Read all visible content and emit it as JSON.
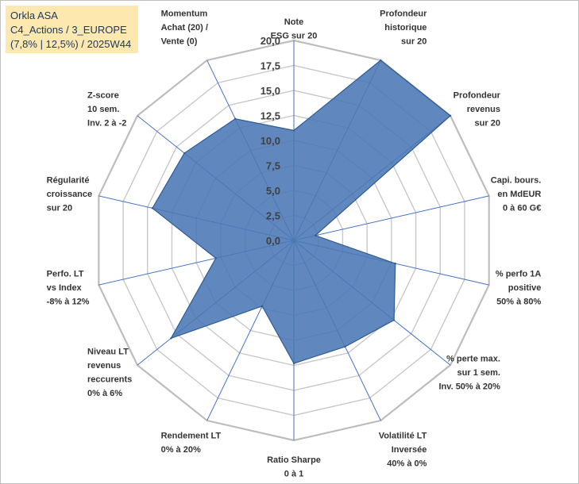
{
  "header": {
    "line1": "Orkla ASA",
    "line2": "C4_Actions / 3_EUROPE",
    "line3": "(7,8% | 12,5%) / 2025W44"
  },
  "colors": {
    "fill": "#4a78b5",
    "outline": "#2f5b94",
    "grid": "#c8c8c8",
    "spoke": "#4472c4",
    "title_bg": "#fde9b0"
  },
  "chart_data": {
    "type": "radar",
    "title": "Orkla ASA",
    "rmin": 0,
    "rmax": 20,
    "grid_step": 2.5,
    "ticks": [
      "0,0",
      "2,5",
      "5,0",
      "7,5",
      "10,0",
      "12,5",
      "15,0",
      "17,5",
      "20,0"
    ],
    "axes": [
      {
        "label": [
          "Note",
          "ESG sur 20"
        ],
        "value": 11.0
      },
      {
        "label": [
          "Profondeur",
          "historique",
          "sur 20"
        ],
        "value": 20.0
      },
      {
        "label": [
          "Profondeur",
          "revenus",
          "sur 20"
        ],
        "value": 20.0
      },
      {
        "label": [
          "Capi. bours.",
          "en MdEUR",
          "0 à 60 G€"
        ],
        "value": 2.2
      },
      {
        "label": [
          "% perfo 1A",
          "positive",
          "50% à 80%"
        ],
        "value": 10.4
      },
      {
        "label": [
          "% perte max.",
          "sur 1 sem.",
          "Inv. 50% à 20%"
        ],
        "value": 12.8
      },
      {
        "label": [
          "Volatilité LT",
          "Inversée",
          "40% à 0%"
        ],
        "value": 11.8
      },
      {
        "label": [
          "Ratio Sharpe",
          "0 à 1"
        ],
        "value": 12.3
      },
      {
        "label": [
          "Rendement LT",
          "0% à 20%"
        ],
        "value": 7.3
      },
      {
        "label": [
          "Niveau LT",
          "revenus",
          "reccurents",
          "0% à 6%"
        ],
        "value": 15.7
      },
      {
        "label": [
          "Perfo. LT",
          "vs Index",
          "-8% à 12%"
        ],
        "value": 8.0
      },
      {
        "label": [
          "Régularité",
          "croissance",
          "sur 20"
        ],
        "value": 14.5
      },
      {
        "label": [
          "Z-score",
          "10 sem.",
          "Inv. 2 à -2"
        ],
        "value": 14.0
      },
      {
        "label": [
          "Momentum",
          "Achat (20) /",
          "Vente (0)"
        ],
        "value": 13.5
      }
    ]
  }
}
